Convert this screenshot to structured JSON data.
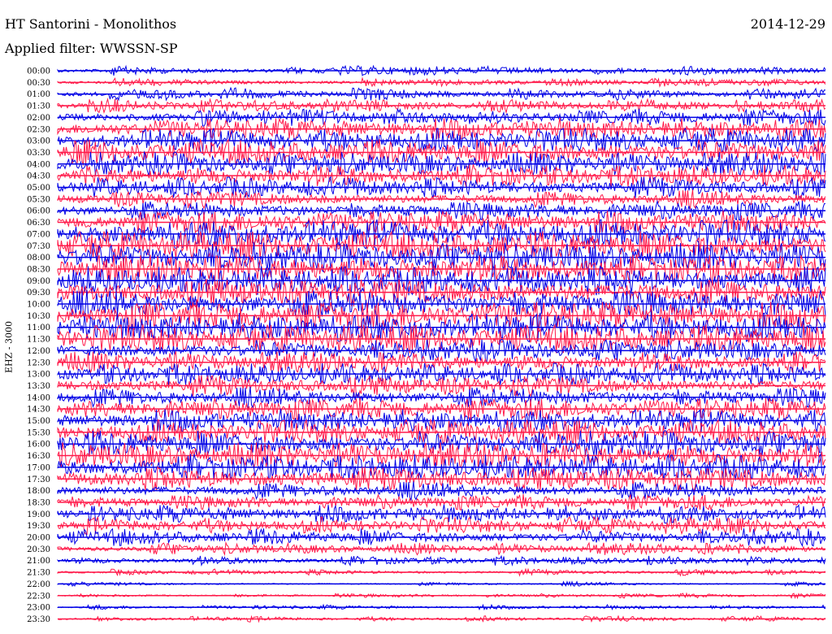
{
  "header": {
    "station": "HT Santorini - Monolithos",
    "date": "2014-12-29",
    "filter": "Applied filter: WWSSN-SP",
    "channel": "EHZ - 3000"
  },
  "colors": {
    "odd": "#0000e6",
    "even": "#ff1a4a"
  },
  "chart_data": {
    "type": "line",
    "title": "HT Santorini - Monolithos",
    "x": [],
    "rows": [
      {
        "label": "00:00",
        "amp": 0.25
      },
      {
        "label": "00:30",
        "amp": 0.2
      },
      {
        "label": "01:00",
        "amp": 0.35
      },
      {
        "label": "01:30",
        "amp": 0.4
      },
      {
        "label": "02:00",
        "amp": 0.55
      },
      {
        "label": "02:30",
        "amp": 0.75
      },
      {
        "label": "03:00",
        "amp": 0.85
      },
      {
        "label": "03:30",
        "amp": 0.9
      },
      {
        "label": "04:00",
        "amp": 0.8
      },
      {
        "label": "04:30",
        "amp": 0.75
      },
      {
        "label": "05:00",
        "amp": 0.7
      },
      {
        "label": "05:30",
        "amp": 0.6
      },
      {
        "label": "06:00",
        "amp": 0.65
      },
      {
        "label": "06:30",
        "amp": 0.8
      },
      {
        "label": "07:00",
        "amp": 1.0
      },
      {
        "label": "07:30",
        "amp": 1.0
      },
      {
        "label": "08:00",
        "amp": 1.0
      },
      {
        "label": "08:30",
        "amp": 1.0
      },
      {
        "label": "09:00",
        "amp": 1.0
      },
      {
        "label": "09:30",
        "amp": 1.0
      },
      {
        "label": "10:00",
        "amp": 1.0
      },
      {
        "label": "10:30",
        "amp": 1.0
      },
      {
        "label": "11:00",
        "amp": 1.0
      },
      {
        "label": "11:30",
        "amp": 1.0
      },
      {
        "label": "12:00",
        "amp": 0.75
      },
      {
        "label": "12:30",
        "amp": 0.7
      },
      {
        "label": "13:00",
        "amp": 0.75
      },
      {
        "label": "13:30",
        "amp": 0.7
      },
      {
        "label": "14:00",
        "amp": 0.7
      },
      {
        "label": "14:30",
        "amp": 0.75
      },
      {
        "label": "15:00",
        "amp": 0.8
      },
      {
        "label": "15:30",
        "amp": 0.85
      },
      {
        "label": "16:00",
        "amp": 0.9
      },
      {
        "label": "16:30",
        "amp": 0.9
      },
      {
        "label": "17:00",
        "amp": 0.9
      },
      {
        "label": "17:30",
        "amp": 0.85
      },
      {
        "label": "18:00",
        "amp": 0.6
      },
      {
        "label": "18:30",
        "amp": 0.5
      },
      {
        "label": "19:00",
        "amp": 0.6
      },
      {
        "label": "19:30",
        "amp": 0.55
      },
      {
        "label": "20:00",
        "amp": 0.55
      },
      {
        "label": "20:30",
        "amp": 0.35
      },
      {
        "label": "21:00",
        "amp": 0.25
      },
      {
        "label": "21:30",
        "amp": 0.12
      },
      {
        "label": "22:00",
        "amp": 0.05
      },
      {
        "label": "22:30",
        "amp": 0.06
      },
      {
        "label": "23:00",
        "amp": 0.06
      },
      {
        "label": "23:30",
        "amp": 0.1
      }
    ],
    "grid": false,
    "legend": "none"
  }
}
